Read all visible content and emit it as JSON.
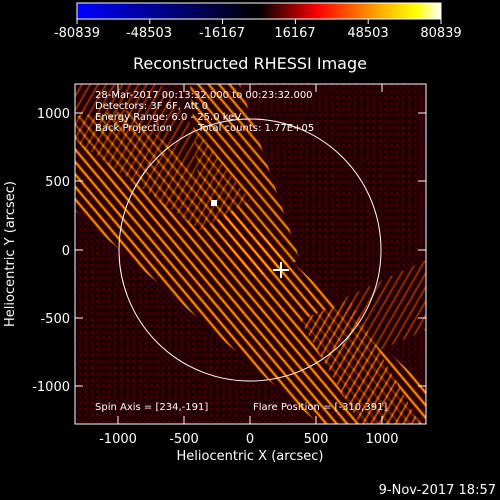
{
  "colorbar": {
    "ticks": [
      "-80839",
      "-48503",
      "-16167",
      "16167",
      "48503",
      "80839"
    ],
    "colors": [
      "#0000ff",
      "#000000",
      "#ff0000",
      "#ffff00",
      "#ffffff"
    ]
  },
  "title": "Reconstructed RHESSI Image",
  "overlay": {
    "time_range": "28-Mar-2017 00:13:32.000 to 00:23:32.000",
    "detectors": "Detectors: 3F 6F, Att 0",
    "energy": "Energy Range: 6.0 - 25.0 keV",
    "method": "Back Projection",
    "counts": "Total counts: 1.77E+05",
    "spin_axis": "Spin Axis = [234,-191]",
    "flare_position": "Flare Position = [-310,391]"
  },
  "x_axis": {
    "label": "Heliocentric X (arcsec)",
    "ticks": [
      "-1000",
      "-500",
      "0",
      "500",
      "1000"
    ]
  },
  "y_axis": {
    "label": "Heliocentric Y (arcsec)",
    "ticks": [
      "1000",
      "500",
      "0",
      "-500",
      "-1000"
    ]
  },
  "footer_date": "9-Nov-2017 18:57"
}
